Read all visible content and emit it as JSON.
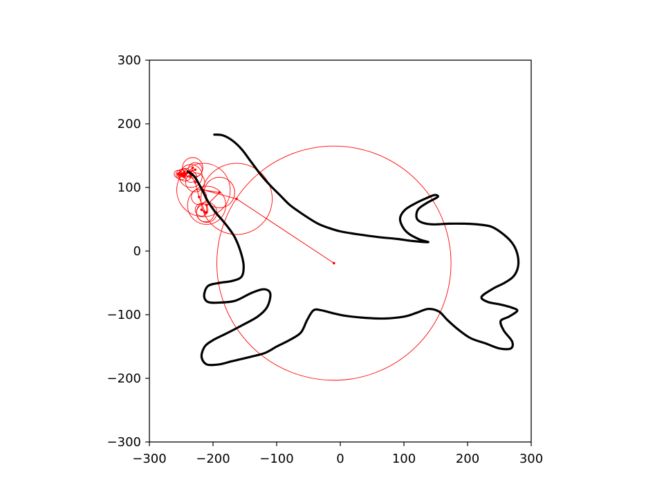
{
  "chart_data": {
    "type": "line",
    "title": "",
    "xlabel": "",
    "ylabel": "",
    "xlim": [
      -300,
      300
    ],
    "ylim": [
      -300,
      300
    ],
    "aspect": "equal",
    "grid": false,
    "legend": "none",
    "x_ticks": [
      -300,
      -200,
      -100,
      0,
      100,
      200,
      300
    ],
    "y_ticks": [
      -300,
      -200,
      -100,
      0,
      100,
      200,
      300
    ],
    "x_tick_labels": [
      "−300",
      "−200",
      "−100",
      "0",
      "100",
      "200",
      "300"
    ],
    "y_tick_labels": [
      "−300",
      "−200",
      "−100",
      "0",
      "100",
      "200",
      "300"
    ],
    "colors": {
      "curve": "#000000",
      "epicycles": "#ff0000"
    },
    "series": [
      {
        "style": "curve",
        "points": [
          [
            -198,
            183
          ],
          [
            -185,
            182
          ],
          [
            -170,
            174
          ],
          [
            -155,
            160
          ],
          [
            -140,
            140
          ],
          [
            -125,
            120
          ],
          [
            -110,
            103
          ],
          [
            -95,
            88
          ],
          [
            -80,
            73
          ],
          [
            -65,
            62
          ],
          [
            -50,
            52
          ],
          [
            -35,
            43
          ],
          [
            -20,
            37
          ],
          [
            0,
            31
          ],
          [
            30,
            26
          ],
          [
            60,
            22
          ],
          [
            90,
            19
          ],
          [
            112,
            16
          ],
          [
            138,
            14
          ],
          [
            125,
            18
          ],
          [
            108,
            27
          ],
          [
            98,
            38
          ],
          [
            94,
            52
          ],
          [
            102,
            65
          ],
          [
            118,
            75
          ],
          [
            135,
            83
          ],
          [
            148,
            88
          ],
          [
            153,
            85
          ],
          [
            135,
            75
          ],
          [
            122,
            65
          ],
          [
            120,
            52
          ],
          [
            128,
            45
          ],
          [
            145,
            42
          ],
          [
            170,
            43
          ],
          [
            195,
            43
          ],
          [
            215,
            42
          ],
          [
            238,
            38
          ],
          [
            258,
            25
          ],
          [
            272,
            10
          ],
          [
            279,
            -8
          ],
          [
            279,
            -26
          ],
          [
            272,
            -40
          ],
          [
            258,
            -50
          ],
          [
            240,
            -59
          ],
          [
            222,
            -72
          ],
          [
            232,
            -80
          ],
          [
            252,
            -84
          ],
          [
            270,
            -89
          ],
          [
            278,
            -94
          ],
          [
            265,
            -103
          ],
          [
            252,
            -110
          ],
          [
            257,
            -125
          ],
          [
            270,
            -142
          ],
          [
            268,
            -153
          ],
          [
            250,
            -153
          ],
          [
            228,
            -145
          ],
          [
            205,
            -137
          ],
          [
            185,
            -123
          ],
          [
            168,
            -108
          ],
          [
            155,
            -95
          ],
          [
            138,
            -91
          ],
          [
            120,
            -97
          ],
          [
            100,
            -103
          ],
          [
            70,
            -106
          ],
          [
            40,
            -105
          ],
          [
            10,
            -102
          ],
          [
            -10,
            -98
          ],
          [
            -30,
            -93
          ],
          [
            -42,
            -93
          ],
          [
            -52,
            -108
          ],
          [
            -62,
            -128
          ],
          [
            -80,
            -140
          ],
          [
            -100,
            -150
          ],
          [
            -118,
            -160
          ],
          [
            -140,
            -166
          ],
          [
            -170,
            -173
          ],
          [
            -190,
            -178
          ],
          [
            -210,
            -178
          ],
          [
            -218,
            -166
          ],
          [
            -213,
            -150
          ],
          [
            -200,
            -140
          ],
          [
            -180,
            -130
          ],
          [
            -155,
            -117
          ],
          [
            -130,
            -103
          ],
          [
            -115,
            -88
          ],
          [
            -110,
            -67
          ],
          [
            -120,
            -60
          ],
          [
            -140,
            -66
          ],
          [
            -165,
            -78
          ],
          [
            -190,
            -81
          ],
          [
            -208,
            -80
          ],
          [
            -214,
            -70
          ],
          [
            -208,
            -55
          ],
          [
            -190,
            -50
          ],
          [
            -170,
            -47
          ],
          [
            -155,
            -40
          ],
          [
            -152,
            -22
          ],
          [
            -157,
            0
          ],
          [
            -166,
            22
          ],
          [
            -180,
            42
          ],
          [
            -197,
            62
          ],
          [
            -208,
            78
          ],
          [
            -215,
            92
          ],
          [
            -222,
            105
          ],
          [
            -230,
            118
          ],
          [
            -240,
            125
          ]
        ]
      },
      {
        "style": "epicycle-arm",
        "points": [
          [
            -10,
            -19
          ],
          [
            -163,
            82
          ],
          [
            -215,
            96
          ],
          [
            -190,
            92
          ],
          [
            -210,
            72
          ],
          [
            -210,
            61
          ],
          [
            -218,
            65
          ],
          [
            -212,
            60
          ],
          [
            -222,
            85
          ],
          [
            -228,
            108
          ],
          [
            -235,
            118
          ],
          [
            -232,
            131
          ],
          [
            -244,
            120
          ],
          [
            -228,
            128
          ],
          [
            -250,
            120
          ],
          [
            -235,
            117
          ],
          [
            -255,
            121
          ],
          [
            -245,
            124
          ],
          [
            -252,
            120
          ],
          [
            -247,
            119
          ],
          [
            -246,
            117
          ]
        ]
      }
    ],
    "circle_radii": [
      184,
      56,
      42,
      24,
      30,
      16,
      10,
      14,
      12,
      15,
      18,
      16,
      10,
      11,
      8,
      9,
      6,
      5,
      4,
      3
    ]
  }
}
